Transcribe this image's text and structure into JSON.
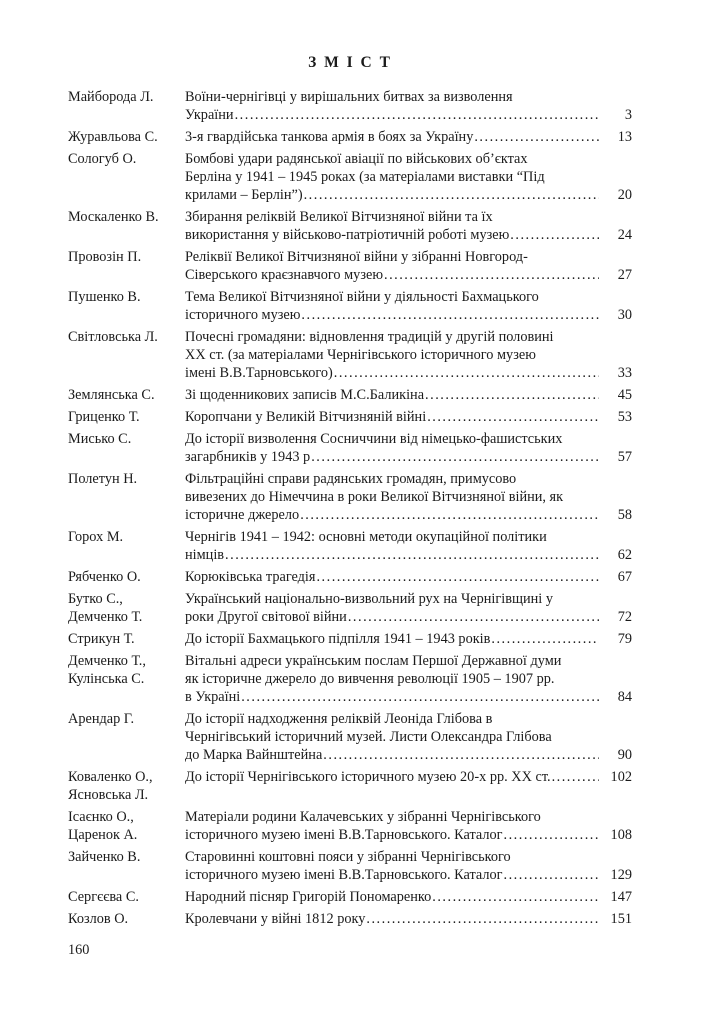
{
  "page": {
    "title": "З М І С Т",
    "footer_page_number": "160"
  },
  "entries": [
    {
      "author_lines": [
        "Майборода Л."
      ],
      "title_lines": [
        "Воїни-чернігівці у вирішальних битвах за визволення",
        "України"
      ],
      "page": "3"
    },
    {
      "author_lines": [
        "Журавльова С."
      ],
      "title_lines": [
        "3-я гвардійська танкова армія в боях за Україну "
      ],
      "page": "13"
    },
    {
      "author_lines": [
        "Сологуб О."
      ],
      "title_lines": [
        "Бомбові удари радянської авіації по військових об’єктах",
        "Берліна у 1941 – 1945 роках (за матеріалами виставки “Під",
        "крилами – Берлін”)"
      ],
      "page": "20"
    },
    {
      "author_lines": [
        "Москаленко В."
      ],
      "title_lines": [
        "Збирання реліквій Великої Вітчизняної війни та їх",
        "використання у військово-патріотичній роботі музею"
      ],
      "page": "24"
    },
    {
      "author_lines": [
        "Провозін П."
      ],
      "title_lines": [
        "Реліквії Великої Вітчизняної війни у зібранні Новгород-",
        "Сіверського краєзнавчого музею"
      ],
      "page": "27"
    },
    {
      "author_lines": [
        "Пушенко В."
      ],
      "title_lines": [
        "Тема Великої Вітчизняної війни у діяльності Бахмацького",
        "історичного музею"
      ],
      "page": "30"
    },
    {
      "author_lines": [
        "Світловська Л."
      ],
      "title_lines": [
        "Почесні громадяни: відновлення традицій у другій половині",
        "ХХ ст. (за матеріалами Чернігівського історичного музею",
        "імені В.В.Тарновського)"
      ],
      "page": "33"
    },
    {
      "author_lines": [
        "Землянська С."
      ],
      "title_lines": [
        "Зі щоденникових записів М.С.Баликіна"
      ],
      "page": "45"
    },
    {
      "author_lines": [
        "Гриценко Т."
      ],
      "title_lines": [
        "Коропчани у Великій Вітчизняній війні"
      ],
      "page": "53"
    },
    {
      "author_lines": [
        "Мисько С."
      ],
      "title_lines": [
        "До історії визволення Сосниччини від німецько-фашистських",
        "загарбників у 1943 р"
      ],
      "page": "57"
    },
    {
      "author_lines": [
        "Полетун Н."
      ],
      "title_lines": [
        "Фільтраційні справи радянських  громадян, примусово",
        "вивезених до  Німеччина в роки  Великої Вітчизняної війни, як",
        "історичне джерело"
      ],
      "page": "58"
    },
    {
      "author_lines": [
        "Горох М."
      ],
      "title_lines": [
        "Чернігів 1941 – 1942: основні методи окупаційної  політики",
        "німців"
      ],
      "page": "62"
    },
    {
      "author_lines": [
        "Рябченко О."
      ],
      "title_lines": [
        "Корюківська трагедія"
      ],
      "page": "67"
    },
    {
      "author_lines": [
        "Бутко С.,",
        "Демченко Т."
      ],
      "title_lines": [
        "Український національно-визвольний рух на Чернігівщині у",
        "роки Другої світової війни"
      ],
      "page": "72"
    },
    {
      "author_lines": [
        "Стрикун Т."
      ],
      "title_lines": [
        "До історії Бахмацького підпілля 1941 – 1943 років"
      ],
      "page": "79"
    },
    {
      "author_lines": [
        "Демченко Т.,",
        "Кулінська С."
      ],
      "title_lines": [
        "Вітальні адреси українським послам Першої Державної думи",
        "як історичне джерело до вивчення революції 1905 – 1907 рр.",
        "в Україні"
      ],
      "page": "84"
    },
    {
      "author_lines": [
        "Арендар Г."
      ],
      "title_lines": [
        "До історії надходження реліквій Леоніда Глібова в",
        "Чернігівський історичний музей. Листи Олександра Глібова",
        "до Марка Вайнштейна"
      ],
      "page": "90"
    },
    {
      "author_lines": [
        "Коваленко О.,",
        "Ясновська Л."
      ],
      "title_lines": [
        "До історії Чернігівського історичного музею 20-х рр. ХХ ст."
      ],
      "page": "102"
    },
    {
      "author_lines": [
        "Ісаєнко О.,",
        "Царенок А."
      ],
      "title_lines": [
        "Матеріали родини Калачевських у зібранні Чернігівського",
        "історичного музею імені В.В.Тарновського. Каталог"
      ],
      "page": "108"
    },
    {
      "author_lines": [
        "Зайченко В."
      ],
      "title_lines": [
        "Старовинні коштовні пояси у зібранні Чернігівського",
        "історичного музею імені В.В.Тарновського. Каталог"
      ],
      "page": "129"
    },
    {
      "author_lines": [
        "Сергєєва С."
      ],
      "title_lines": [
        "Народний пісняр Григорій Пономаренко"
      ],
      "page": "147"
    },
    {
      "author_lines": [
        "Козлов О."
      ],
      "title_lines": [
        "Кролевчани у війні 1812 року"
      ],
      "page": "151"
    }
  ]
}
